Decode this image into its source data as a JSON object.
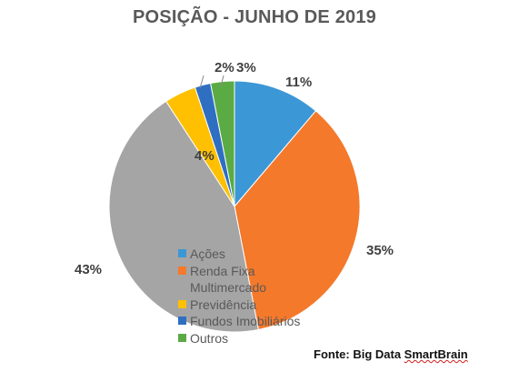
{
  "chart_data": {
    "type": "pie",
    "title": "POSIÇÃO - JUNHO DE 2019",
    "slices": [
      {
        "label": "Ações",
        "value": 11,
        "data_label": "11%",
        "color": "#3c97d6"
      },
      {
        "label": "Renda Fixa\nMultimercado",
        "value": 35,
        "data_label": "35%",
        "color": "#f4792b"
      },
      {
        "label": "",
        "value": 43,
        "data_label": "43%",
        "color": "#a5a5a5"
      },
      {
        "label": "Previdência",
        "value": 4,
        "data_label": "4%",
        "color": "#fec000"
      },
      {
        "label": "Fundos Imobiliários",
        "value": 2,
        "data_label": "2%",
        "color": "#2f6fc2"
      },
      {
        "label": "Outros",
        "value": 3,
        "data_label": "3%",
        "color": "#5bab44"
      }
    ],
    "start_angle_deg": 0,
    "direction": "clockwise",
    "legend_position": "overlay-bottom-center"
  },
  "source": {
    "prefix": "Fonte: Big Data ",
    "brand": "SmartBrain"
  }
}
